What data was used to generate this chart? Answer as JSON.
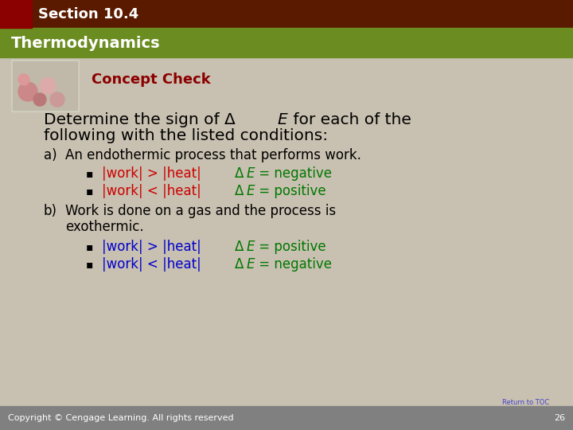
{
  "bg_color": "#c8c0b0",
  "header_dark_color": "#4a3728",
  "header_green_color": "#6b8c21",
  "section_label": "Section 10.4",
  "section_bg": "#8b0000",
  "thermo_label": "Thermodynamics",
  "concept_check_label": "Concept Check",
  "concept_check_color": "#8b0000",
  "title_line1": "Determine the sign of Δ",
  "title_line1_italic": "E",
  "title_line1_rest": " for each of the",
  "title_line2": "following with the listed conditions:",
  "item_a_label": "a)",
  "item_a_text": "An endothermic process that performs work.",
  "bullet_color_red": "#cc0000",
  "bullet_color_green": "#007700",
  "bullet_color_blue": "#0000cc",
  "bullet1_cond": "|work| > |heat|",
  "bullet1_result": "Δ E = negative",
  "bullet2_cond": "|work| < |heat|",
  "bullet2_result": "Δ E = positive",
  "item_b_label": "b)",
  "item_b_text1": "Work is done on a gas and the process is",
  "item_b_text2": "exothermic.",
  "bullet3_cond": "|work| > |heat|",
  "bullet3_result": "Δ E = positive",
  "bullet4_cond": "|work| < |heat|",
  "bullet4_result": "Δ E = negative",
  "footer_text": "Copyright © Cengage Learning. All rights reserved",
  "footer_page": "26",
  "toc_text": "Return to TOC",
  "footer_bg": "#808080"
}
